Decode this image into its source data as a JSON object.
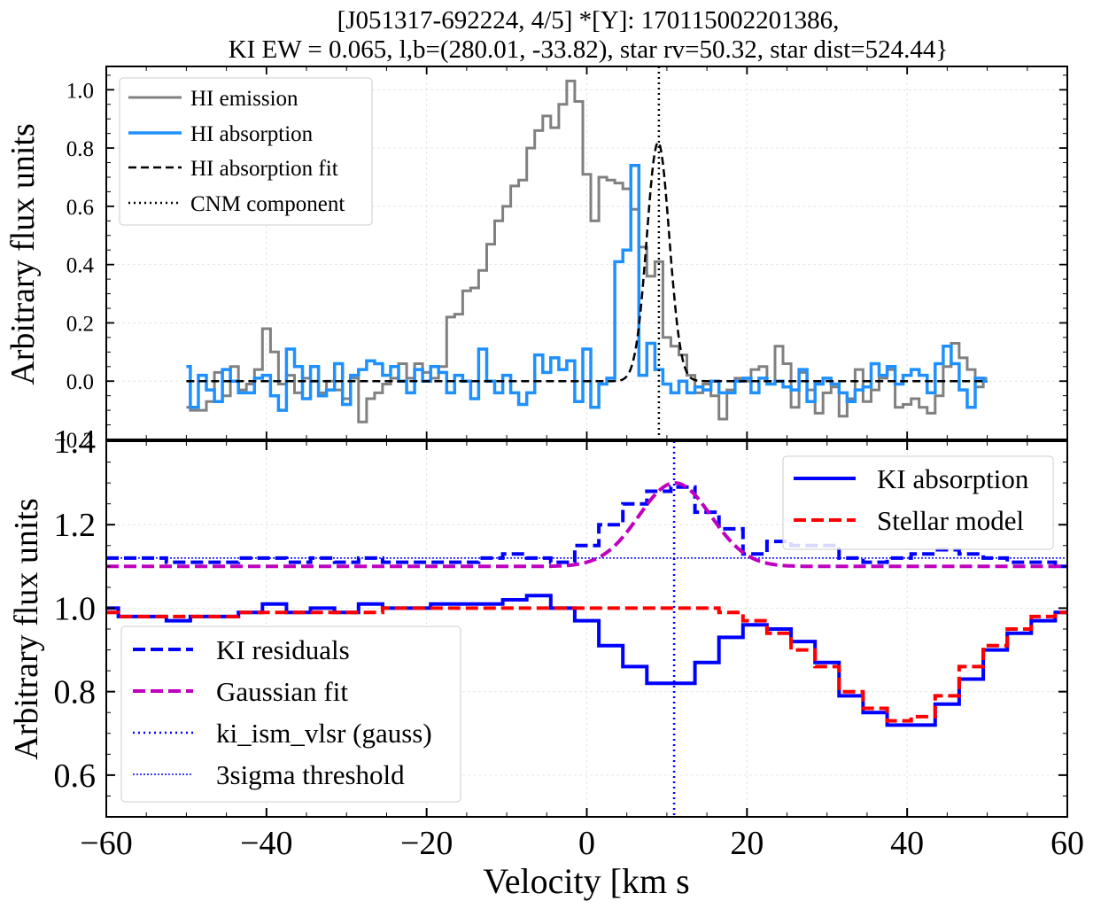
{
  "figure": {
    "title_line1": "[J051317-692224, 4/5] *[Y]: 170115002201386,",
    "title_line2": "KI EW = 0.065, l,b=(280.01, -33.82), star rv=50.32, star dist=524.44}"
  },
  "colors": {
    "hi_emission": "#808080",
    "hi_absorption": "#1e90ff",
    "hi_fit": "#000000",
    "ki_absorption": "#0000ff",
    "stellar_model": "#ff0000",
    "ki_residuals": "#0000ff",
    "gaussian_fit": "#bf00bf",
    "vlsr_line": "#0000ff"
  },
  "chart_data": [
    {
      "type": "line",
      "panel": "top",
      "ylabel": "Arbitrary flux units",
      "xlim": [
        -60,
        60
      ],
      "ylim": [
        -0.2,
        1.08
      ],
      "yticks": [
        -0.2,
        0.0,
        0.2,
        0.4,
        0.6,
        0.8,
        1.0
      ],
      "ytick_labels": [
        "−0.2",
        "0.0",
        "0.2",
        "0.4",
        "0.6",
        "0.8",
        "1.0"
      ],
      "grid": true,
      "legend_position": "upper-left",
      "legend": [
        "HI emission",
        "HI absorption",
        "HI absorption fit",
        "CNM component"
      ],
      "cnm_component_velocity": 9.0,
      "series": [
        {
          "name": "HI emission",
          "style": "step",
          "x": [
            -50,
            -49,
            -48,
            -47,
            -46,
            -45,
            -44,
            -43,
            -42,
            -41,
            -40,
            -39,
            -38,
            -37,
            -36,
            -35,
            -34,
            -33,
            -32,
            -31,
            -30,
            -29,
            -28,
            -27,
            -26,
            -25,
            -24,
            -23,
            -22,
            -21,
            -20,
            -19,
            -18,
            -17,
            -16,
            -15,
            -14,
            -13,
            -12,
            -11,
            -10,
            -9,
            -8,
            -7,
            -6,
            -5,
            -4,
            -3,
            -2,
            -1,
            0,
            1,
            2,
            3,
            4,
            5,
            6,
            7,
            8,
            9,
            10,
            11,
            12,
            13,
            14,
            15,
            16,
            17,
            18,
            19,
            20,
            21,
            22,
            23,
            24,
            25,
            26,
            27,
            28,
            29,
            30,
            31,
            32,
            33,
            34,
            35,
            36,
            37,
            38,
            39,
            40,
            41,
            42,
            43,
            44,
            45,
            46,
            47,
            48,
            49,
            50
          ],
          "y": [
            -0.09,
            -0.1,
            -0.1,
            -0.07,
            0.03,
            -0.05,
            0.05,
            -0.03,
            -0.01,
            0.04,
            0.18,
            0.1,
            -0.01,
            0.02,
            -0.04,
            0.01,
            0.0,
            -0.04,
            0.0,
            -0.03,
            -0.06,
            0.01,
            -0.14,
            -0.06,
            -0.04,
            -0.01,
            0.01,
            0.06,
            0.01,
            0.06,
            0.03,
            0.01,
            0.05,
            0.22,
            0.23,
            0.31,
            0.32,
            0.38,
            0.47,
            0.55,
            0.6,
            0.67,
            0.69,
            0.8,
            0.86,
            0.91,
            0.87,
            0.95,
            1.03,
            0.96,
            0.71,
            0.55,
            0.7,
            0.69,
            0.68,
            0.66,
            0.59,
            0.46,
            0.36,
            0.41,
            0.15,
            0.12,
            0.09,
            0.02,
            -0.04,
            -0.01,
            -0.05,
            -0.13,
            -0.03,
            0.01,
            0.0,
            0.04,
            0.05,
            -0.01,
            0.12,
            0.06,
            -0.09,
            0.03,
            -0.03,
            -0.11,
            -0.04,
            -0.02,
            -0.12,
            -0.06,
            0.04,
            -0.07,
            -0.03,
            0.01,
            0.04,
            -0.09,
            -0.08,
            -0.06,
            -0.09,
            -0.11,
            -0.05,
            0.05,
            0.13,
            0.08,
            0.04,
            -0.02,
            0.01
          ]
        },
        {
          "name": "HI absorption",
          "style": "step",
          "x": [
            -50,
            -49,
            -48,
            -47,
            -46,
            -45,
            -44,
            -43,
            -42,
            -41,
            -40,
            -39,
            -38,
            -37,
            -36,
            -35,
            -34,
            -33,
            -32,
            -31,
            -30,
            -29,
            -28,
            -27,
            -26,
            -25,
            -24,
            -23,
            -22,
            -21,
            -20,
            -19,
            -18,
            -17,
            -16,
            -15,
            -14,
            -13,
            -12,
            -11,
            -10,
            -9,
            -8,
            -7,
            -6,
            -5,
            -4,
            -3,
            -2,
            -1,
            0,
            1,
            2,
            3,
            4,
            5,
            6,
            7,
            8,
            9,
            10,
            11,
            12,
            13,
            14,
            15,
            16,
            17,
            18,
            19,
            20,
            21,
            22,
            23,
            24,
            25,
            26,
            27,
            28,
            29,
            30,
            31,
            32,
            33,
            34,
            35,
            36,
            37,
            38,
            39,
            40,
            41,
            42,
            43,
            44,
            45,
            46,
            47,
            48,
            49,
            50
          ],
          "y": [
            0.05,
            -0.09,
            0.02,
            -0.03,
            -0.07,
            0.04,
            0.0,
            -0.04,
            -0.04,
            0.01,
            0.02,
            -0.05,
            -0.1,
            0.11,
            0.05,
            -0.06,
            0.05,
            -0.05,
            -0.03,
            0.06,
            -0.08,
            0.02,
            0.04,
            0.07,
            0.06,
            0.02,
            0.05,
            0.0,
            -0.04,
            0.04,
            0.0,
            0.05,
            0.03,
            -0.04,
            0.02,
            0.0,
            -0.06,
            0.11,
            0.0,
            -0.04,
            0.02,
            -0.04,
            -0.08,
            -0.04,
            0.09,
            0.03,
            0.08,
            0.04,
            0.07,
            -0.07,
            0.11,
            -0.09,
            -0.01,
            0.01,
            0.41,
            0.45,
            0.74,
            0.02,
            0.13,
            0.04,
            -0.01,
            -0.04,
            0.0,
            -0.04,
            -0.02,
            -0.03,
            0.0,
            -0.04,
            -0.04,
            0.0,
            0.01,
            -0.04,
            0.01,
            -0.01,
            0.0,
            -0.02,
            -0.03,
            0.04,
            -0.07,
            -0.01,
            0.01,
            -0.01,
            -0.04,
            -0.07,
            -0.03,
            -0.02,
            0.06,
            0.02,
            0.05,
            -0.01,
            0.02,
            0.04,
            0.02,
            -0.04,
            0.06,
            0.12,
            0.06,
            -0.03,
            -0.09,
            0.01,
            0.0
          ]
        },
        {
          "name": "HI absorption fit",
          "style": "gaussian",
          "amplitude": 0.82,
          "center": 8.9,
          "sigma": 1.4,
          "baseline": 0.0,
          "xrange": [
            -50,
            50
          ]
        }
      ]
    },
    {
      "type": "line",
      "panel": "bottom",
      "xlabel": "Velocity [km s",
      "ylabel": "Arbitrary flux units",
      "xlim": [
        -60,
        60
      ],
      "ylim": [
        0.5,
        1.4
      ],
      "xticks": [
        -60,
        -40,
        -20,
        0,
        20,
        40,
        60
      ],
      "xtick_labels": [
        "−60",
        "−40",
        "−20",
        "0",
        "20",
        "40",
        "60"
      ],
      "yticks": [
        0.6,
        0.8,
        1.0,
        1.2,
        1.4
      ],
      "ytick_labels": [
        "0.6",
        "0.8",
        "1.0",
        "1.2",
        "1.4"
      ],
      "grid": true,
      "legend_upper_right": [
        "KI absorption",
        "Stellar model"
      ],
      "legend_lower_left": [
        "KI residuals",
        "Gaussian fit",
        "ki_ism_vlsr (gauss)",
        "3sigma threshold"
      ],
      "ki_ism_vlsr": 10.9,
      "threshold": 1.12,
      "series": [
        {
          "name": "KI absorption",
          "style": "step",
          "x": [
            -60,
            -57,
            -54,
            -51,
            -48,
            -45,
            -42,
            -39,
            -36,
            -33,
            -30,
            -27,
            -24,
            -21,
            -18,
            -15,
            -12,
            -9,
            -6,
            -3,
            0,
            3,
            6,
            9,
            12,
            15,
            18,
            21,
            24,
            27,
            30,
            33,
            36,
            39,
            42,
            45,
            48,
            51,
            54,
            57,
            60
          ],
          "y": [
            1.0,
            0.98,
            0.98,
            0.97,
            0.98,
            0.98,
            0.99,
            1.01,
            0.99,
            1.0,
            0.99,
            1.01,
            1.0,
            1.0,
            1.01,
            1.01,
            1.01,
            1.02,
            1.03,
            1.0,
            0.97,
            0.91,
            0.86,
            0.82,
            0.82,
            0.87,
            0.93,
            0.96,
            0.95,
            0.92,
            0.87,
            0.79,
            0.75,
            0.72,
            0.72,
            0.77,
            0.83,
            0.9,
            0.94,
            0.97,
            0.99
          ]
        },
        {
          "name": "Stellar model",
          "style": "step",
          "x": [
            -60,
            -57,
            -54,
            -51,
            -48,
            -45,
            -42,
            -39,
            -36,
            -33,
            -30,
            -27,
            -24,
            -21,
            -18,
            -15,
            -12,
            -9,
            -6,
            -3,
            0,
            3,
            6,
            9,
            12,
            15,
            18,
            21,
            24,
            27,
            30,
            33,
            36,
            39,
            42,
            45,
            48,
            51,
            54,
            57,
            60
          ],
          "y": [
            0.99,
            0.98,
            0.98,
            0.98,
            0.98,
            0.98,
            0.99,
            0.99,
            0.99,
            0.99,
            0.99,
            0.99,
            1.0,
            1.0,
            1.0,
            1.0,
            1.0,
            1.0,
            1.0,
            1.0,
            1.0,
            1.0,
            1.0,
            1.0,
            1.0,
            1.0,
            0.99,
            0.97,
            0.94,
            0.9,
            0.86,
            0.8,
            0.76,
            0.73,
            0.74,
            0.79,
            0.86,
            0.91,
            0.95,
            0.98,
            0.99
          ]
        },
        {
          "name": "KI residuals",
          "style": "step",
          "x": [
            -60,
            -57,
            -54,
            -51,
            -48,
            -45,
            -42,
            -39,
            -36,
            -33,
            -30,
            -27,
            -24,
            -21,
            -18,
            -15,
            -12,
            -9,
            -6,
            -3,
            0,
            3,
            6,
            9,
            12,
            15,
            18,
            21,
            24,
            27,
            30,
            33,
            36,
            39,
            42,
            45,
            48,
            51,
            54,
            57,
            60
          ],
          "y": [
            1.12,
            1.12,
            1.12,
            1.11,
            1.11,
            1.11,
            1.12,
            1.12,
            1.11,
            1.12,
            1.11,
            1.12,
            1.11,
            1.11,
            1.11,
            1.11,
            1.12,
            1.13,
            1.12,
            1.11,
            1.15,
            1.2,
            1.25,
            1.28,
            1.29,
            1.23,
            1.19,
            1.13,
            1.16,
            1.15,
            1.15,
            1.12,
            1.11,
            1.12,
            1.13,
            1.14,
            1.13,
            1.12,
            1.11,
            1.11,
            1.1
          ]
        },
        {
          "name": "Gaussian fit",
          "style": "gaussian",
          "amplitude": 0.2,
          "center": 11.0,
          "sigma": 4.5,
          "baseline": 1.1,
          "xrange": [
            -60,
            60
          ]
        }
      ]
    }
  ]
}
